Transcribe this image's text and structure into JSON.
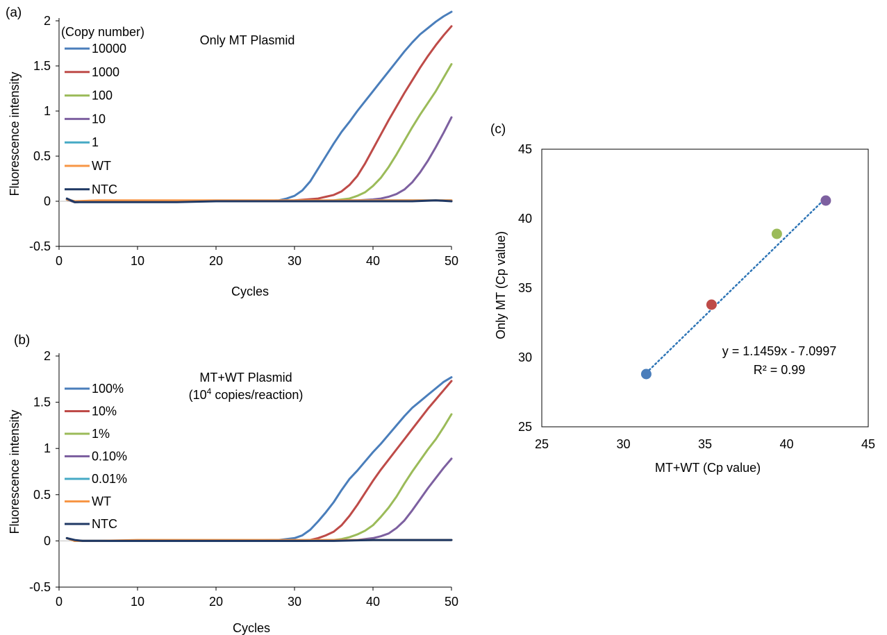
{
  "chart_data": [
    {
      "panel_label": "(a)",
      "type": "line",
      "title": "Only MT Plasmid",
      "subtitle": "",
      "xlabel": "Cycles",
      "ylabel": "Fluorescence intensity",
      "xlim": [
        0,
        50
      ],
      "ylim": [
        -0.5,
        2
      ],
      "xticks": [
        0,
        10,
        20,
        30,
        40,
        50
      ],
      "yticks": [
        -0.5,
        0,
        0.5,
        1,
        1.5,
        2
      ],
      "ytick_labels": [
        "-0.5",
        "0",
        "0.5",
        "1",
        "1.5",
        "2"
      ],
      "grid": false,
      "legend_title": "(Copy number)",
      "legend_position": "top-left",
      "series": [
        {
          "name": "10000",
          "color": "#4a7ebb",
          "x": [
            1,
            2,
            3,
            5,
            10,
            15,
            20,
            25,
            28,
            29,
            30,
            31,
            32,
            33,
            34,
            35,
            36,
            37,
            38,
            39,
            40,
            41,
            42,
            43,
            44,
            45,
            46,
            47,
            48,
            49,
            50
          ],
          "y": [
            0.02,
            -0.01,
            0,
            0,
            0,
            0,
            0,
            0,
            0.01,
            0.03,
            0.06,
            0.12,
            0.22,
            0.36,
            0.5,
            0.64,
            0.77,
            0.88,
            1.0,
            1.11,
            1.22,
            1.33,
            1.44,
            1.55,
            1.66,
            1.76,
            1.85,
            1.92,
            1.99,
            2.05,
            2.1
          ]
        },
        {
          "name": "1000",
          "color": "#be4b48",
          "x": [
            1,
            2,
            5,
            10,
            20,
            30,
            33,
            34,
            35,
            36,
            37,
            38,
            39,
            40,
            41,
            42,
            43,
            44,
            45,
            46,
            47,
            48,
            49,
            50
          ],
          "y": [
            0.02,
            -0.01,
            0,
            0,
            0,
            0.01,
            0.03,
            0.05,
            0.07,
            0.11,
            0.18,
            0.28,
            0.42,
            0.58,
            0.74,
            0.9,
            1.05,
            1.2,
            1.34,
            1.48,
            1.61,
            1.73,
            1.84,
            1.94
          ]
        },
        {
          "name": "100",
          "color": "#9bbb59",
          "x": [
            1,
            2,
            5,
            10,
            20,
            30,
            35,
            37,
            38,
            39,
            40,
            41,
            42,
            43,
            44,
            45,
            46,
            47,
            48,
            49,
            50
          ],
          "y": [
            0.02,
            -0.01,
            0,
            0,
            0,
            0,
            0.01,
            0.03,
            0.06,
            0.1,
            0.17,
            0.26,
            0.38,
            0.52,
            0.67,
            0.82,
            0.96,
            1.09,
            1.22,
            1.37,
            1.52
          ]
        },
        {
          "name": "10",
          "color": "#7d60a0",
          "x": [
            1,
            2,
            5,
            10,
            20,
            30,
            38,
            40,
            41,
            42,
            43,
            44,
            45,
            46,
            47,
            48,
            49,
            50
          ],
          "y": [
            0.02,
            -0.01,
            0,
            0,
            0,
            0,
            0.01,
            0.02,
            0.03,
            0.05,
            0.08,
            0.13,
            0.21,
            0.32,
            0.45,
            0.6,
            0.76,
            0.93
          ]
        },
        {
          "name": "1",
          "color": "#46aac5",
          "x": [
            1,
            2,
            5,
            10,
            20,
            30,
            40,
            50
          ],
          "y": [
            0.02,
            0,
            0,
            0,
            0,
            0,
            0.01,
            0.01
          ]
        },
        {
          "name": "WT",
          "color": "#f79646",
          "x": [
            1,
            2,
            5,
            10,
            20,
            30,
            40,
            50
          ],
          "y": [
            0.02,
            0,
            0.01,
            0.01,
            0.01,
            0.01,
            0.01,
            0.01
          ]
        },
        {
          "name": "NTC",
          "color": "#1f3864",
          "x": [
            1,
            2,
            3,
            5,
            10,
            15,
            20,
            25,
            30,
            35,
            40,
            45,
            48,
            50
          ],
          "y": [
            0.03,
            -0.01,
            -0.01,
            -0.01,
            -0.01,
            -0.01,
            0,
            0,
            0,
            0,
            0,
            0,
            0.01,
            0
          ]
        }
      ]
    },
    {
      "panel_label": "(b)",
      "type": "line",
      "title": "MT+WT Plasmid",
      "subtitle": {
        "pre": "(10",
        "sup": "4",
        "post": " copies/reaction)"
      },
      "xlabel": "Cycles",
      "ylabel": "Fluorescence intensity",
      "xlim": [
        0,
        50
      ],
      "ylim": [
        -0.5,
        2
      ],
      "xticks": [
        0,
        10,
        20,
        30,
        40,
        50
      ],
      "yticks": [
        -0.5,
        0,
        0.5,
        1,
        1.5,
        2
      ],
      "ytick_labels": [
        "-0.5",
        "0",
        "0.5",
        "1",
        "1.5",
        "2"
      ],
      "grid": false,
      "legend_title": "",
      "legend_position": "top-left",
      "series": [
        {
          "name": "100%",
          "color": "#4a7ebb",
          "x": [
            1,
            2,
            5,
            10,
            20,
            28,
            30,
            31,
            32,
            33,
            34,
            35,
            36,
            37,
            38,
            39,
            40,
            41,
            42,
            43,
            44,
            45,
            46,
            47,
            48,
            49,
            50
          ],
          "y": [
            0.03,
            0,
            0,
            0,
            0,
            0.01,
            0.03,
            0.06,
            0.12,
            0.21,
            0.31,
            0.42,
            0.55,
            0.67,
            0.76,
            0.86,
            0.96,
            1.05,
            1.15,
            1.25,
            1.35,
            1.44,
            1.51,
            1.58,
            1.65,
            1.72,
            1.77
          ]
        },
        {
          "name": "10%",
          "color": "#be4b48",
          "x": [
            1,
            2,
            5,
            10,
            20,
            30,
            32,
            33,
            34,
            35,
            36,
            37,
            38,
            39,
            40,
            41,
            42,
            43,
            44,
            45,
            46,
            47,
            48,
            49,
            50
          ],
          "y": [
            0.03,
            0,
            0,
            0,
            0,
            0,
            0.01,
            0.03,
            0.06,
            0.1,
            0.17,
            0.27,
            0.39,
            0.52,
            0.65,
            0.77,
            0.88,
            0.99,
            1.1,
            1.21,
            1.32,
            1.43,
            1.53,
            1.63,
            1.73
          ]
        },
        {
          "name": "1%",
          "color": "#9bbb59",
          "x": [
            1,
            2,
            5,
            10,
            20,
            30,
            35,
            36,
            37,
            38,
            39,
            40,
            41,
            42,
            43,
            44,
            45,
            46,
            47,
            48,
            49,
            50
          ],
          "y": [
            0.03,
            0,
            0,
            0,
            0,
            0,
            0.01,
            0.02,
            0.04,
            0.07,
            0.11,
            0.17,
            0.26,
            0.36,
            0.48,
            0.62,
            0.75,
            0.87,
            0.99,
            1.1,
            1.23,
            1.37
          ]
        },
        {
          "name": "0.10%",
          "color": "#7d60a0",
          "x": [
            1,
            2,
            5,
            10,
            20,
            30,
            38,
            40,
            41,
            42,
            43,
            44,
            45,
            46,
            47,
            48,
            49,
            50
          ],
          "y": [
            0.03,
            0,
            0,
            0,
            0,
            0,
            0.01,
            0.03,
            0.05,
            0.08,
            0.14,
            0.22,
            0.33,
            0.45,
            0.57,
            0.68,
            0.79,
            0.89
          ]
        },
        {
          "name": "0.01%",
          "color": "#46aac5",
          "x": [
            1,
            2,
            5,
            10,
            20,
            30,
            40,
            50
          ],
          "y": [
            0.03,
            0,
            0,
            0,
            0,
            0,
            0.01,
            0.01
          ]
        },
        {
          "name": "WT",
          "color": "#f79646",
          "x": [
            1,
            2,
            5,
            10,
            20,
            30,
            40,
            50
          ],
          "y": [
            0.03,
            0,
            0,
            0.01,
            0.01,
            0.01,
            0.01,
            0.01
          ]
        },
        {
          "name": "NTC",
          "color": "#1f3864",
          "x": [
            1,
            2,
            3,
            5,
            10,
            15,
            20,
            25,
            30,
            35,
            40,
            45,
            50
          ],
          "y": [
            0.03,
            0.01,
            0,
            0,
            0,
            0,
            0,
            0,
            0,
            0,
            0.01,
            0.01,
            0.01
          ]
        }
      ]
    },
    {
      "panel_label": "(c)",
      "type": "scatter",
      "title": "",
      "xlabel": "MT+WT (Cp value)",
      "ylabel": "Only MT (Cp value)",
      "xlim": [
        25,
        45
      ],
      "ylim": [
        25,
        45
      ],
      "xticks": [
        25,
        30,
        35,
        40,
        45
      ],
      "yticks": [
        25,
        30,
        35,
        40,
        45
      ],
      "grid": false,
      "points": [
        {
          "x": 31.4,
          "y": 28.8,
          "color": "#4a7ebb"
        },
        {
          "x": 35.4,
          "y": 33.8,
          "color": "#be4b48"
        },
        {
          "x": 39.4,
          "y": 38.9,
          "color": "#9bbb59"
        },
        {
          "x": 42.4,
          "y": 41.3,
          "color": "#7d60a0"
        }
      ],
      "trendline": {
        "color": "#2e75b6",
        "x": [
          31.4,
          42.4
        ],
        "slope": 1.1459,
        "intercept": -7.0997
      },
      "equation": "y = 1.1459x - 7.0997",
      "r_squared": "R² = 0.99"
    }
  ]
}
